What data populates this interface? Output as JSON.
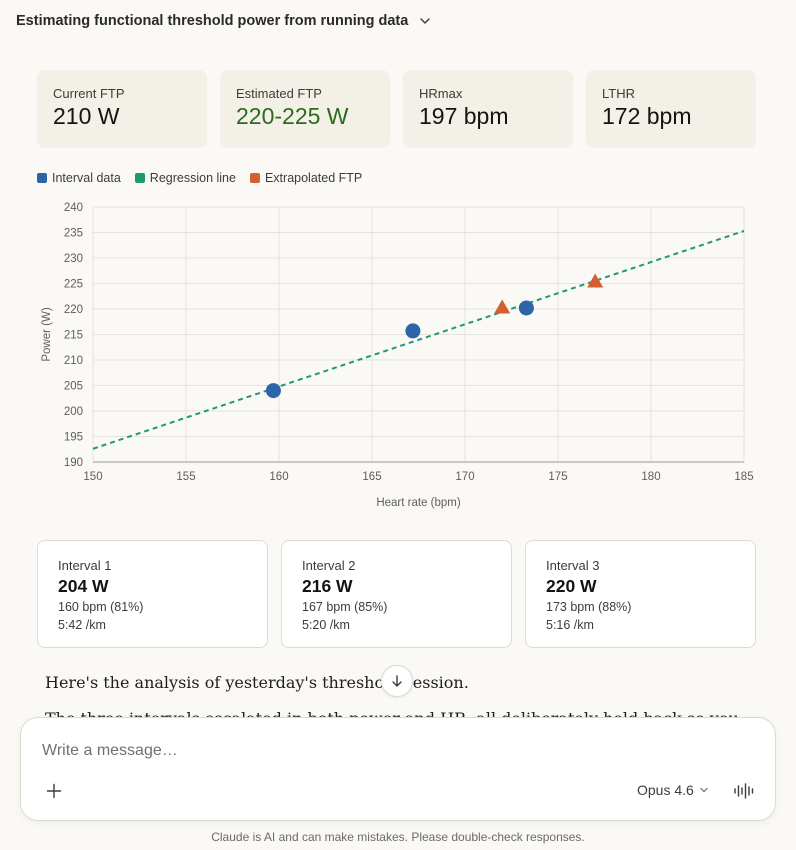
{
  "header": {
    "title": "Estimating functional threshold power from running data",
    "chevron_icon": "chevron-down-icon"
  },
  "stats": [
    {
      "label": "Current FTP",
      "value": "210 W",
      "highlight": false
    },
    {
      "label": "Estimated FTP",
      "value": "220-225 W",
      "highlight": true
    },
    {
      "label": "HRmax",
      "value": "197 bpm",
      "highlight": false
    },
    {
      "label": "LTHR",
      "value": "172 bpm",
      "highlight": false
    }
  ],
  "colors": {
    "interval": "#2e64a8",
    "regression": "#1f9a6e",
    "extrapolated": "#d4602f",
    "estimated_text": "#2d6a1e"
  },
  "legend": [
    {
      "label": "Interval data",
      "color": "#2e64a8"
    },
    {
      "label": "Regression line",
      "color": "#1f9a6e"
    },
    {
      "label": "Extrapolated FTP",
      "color": "#d4602f"
    }
  ],
  "chart_data": {
    "type": "scatter",
    "xlabel": "Heart rate (bpm)",
    "ylabel": "Power (W)",
    "xlim": [
      150,
      185
    ],
    "ylim": [
      190,
      240
    ],
    "xticks": [
      150,
      155,
      160,
      165,
      170,
      175,
      180,
      185
    ],
    "yticks": [
      190,
      195,
      200,
      205,
      210,
      215,
      220,
      225,
      230,
      235,
      240
    ],
    "grid": true,
    "legend_position": "top-left",
    "series": [
      {
        "name": "Interval data",
        "marker": "circle",
        "points": [
          [
            159.7,
            204
          ],
          [
            167.2,
            215.7
          ],
          [
            173.3,
            220.2
          ]
        ]
      },
      {
        "name": "Regression line",
        "style": "dashed",
        "points": [
          [
            150,
            192.6
          ],
          [
            185,
            235.3
          ]
        ]
      },
      {
        "name": "Extrapolated FTP",
        "marker": "triangle",
        "points": [
          [
            172,
            220.3
          ],
          [
            177,
            225.4
          ]
        ]
      }
    ]
  },
  "intervals": [
    {
      "title": "Interval 1",
      "power": "204 W",
      "hr": "160 bpm (81%)",
      "pace": "5:42 /km"
    },
    {
      "title": "Interval 2",
      "power": "216 W",
      "hr": "167 bpm (85%)",
      "pace": "5:20 /km"
    },
    {
      "title": "Interval 3",
      "power": "220 W",
      "hr": "173 bpm (88%)",
      "pace": "5:16 /km"
    }
  ],
  "message": {
    "para1": "Here's the analysis of yesterday's threshold session.",
    "para2": "The three intervals escalated in both power and HR, all deliberately held back so you"
  },
  "composer": {
    "placeholder": "Write a message…",
    "model": "Opus 4.6"
  },
  "footer": {
    "disclaimer": "Claude is AI and can make mistakes. Please double-check responses."
  }
}
